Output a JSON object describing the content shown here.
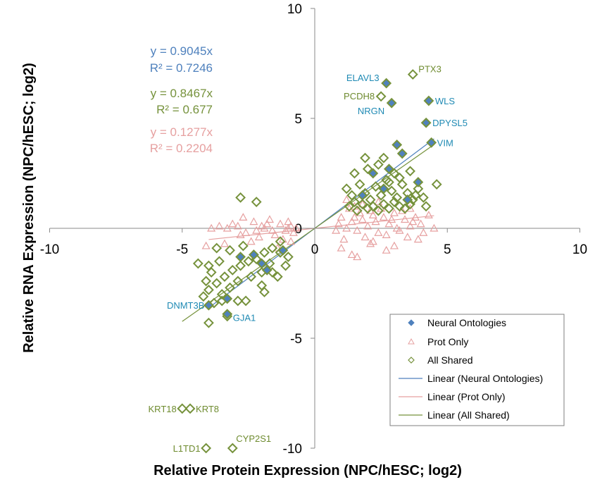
{
  "chart_data": {
    "type": "scatter",
    "xlabel": "Relative Protein Expression (NPC/hESC; log2)",
    "ylabel": "Relative RNA Expression (NPC/hESC; log2)",
    "xlim": [
      -10,
      10
    ],
    "ylim": [
      -10,
      10
    ],
    "x_ticks": [
      -10,
      -5,
      0,
      5,
      10
    ],
    "y_ticks": [
      -10,
      -5,
      5,
      10
    ],
    "origin_tick": "0",
    "colors": {
      "neural": "#4f81bd",
      "prot": "#e6a0a0",
      "shared": "#76923c",
      "neural_label": "#1f8ab4",
      "shared_label": "#6e8b2f",
      "neural_eq": "#4f81bd",
      "shared_eq": "#76923c",
      "prot_eq": "#e6a0a0"
    },
    "equations": [
      {
        "eq": "y = 0.9045x",
        "r2": "R² = 0.7246",
        "series": "neural_ontologies"
      },
      {
        "eq": "y = 0.8467x",
        "r2": "R² = 0.677",
        "series": "all_shared"
      },
      {
        "eq": "y = 0.1277x",
        "r2": "R² = 0.2204",
        "series": "prot_only"
      }
    ],
    "trendlines": [
      {
        "series": "neural_ontologies",
        "slope": 0.9045,
        "x_range": [
          -4.0,
          4.5
        ]
      },
      {
        "series": "prot_only",
        "slope": 0.1277,
        "x_range": [
          -4.0,
          4.5
        ]
      },
      {
        "series": "all_shared",
        "slope": 0.8467,
        "x_range": [
          -5.0,
          4.5
        ]
      }
    ],
    "legend": {
      "placement": "bottom-right",
      "items": [
        {
          "label": "Neural Ontologies",
          "kind": "neural-marker"
        },
        {
          "label": "Prot Only",
          "kind": "prot-marker"
        },
        {
          "label": "All Shared",
          "kind": "shared-marker"
        },
        {
          "label": "Linear (Neural Ontologies)",
          "kind": "neural-line"
        },
        {
          "label": "Linear (Prot Only)",
          "kind": "prot-line"
        },
        {
          "label": "Linear (All Shared)",
          "kind": "shared-line"
        }
      ]
    },
    "labeled_points": [
      {
        "name": "PTX3",
        "x": 3.7,
        "y": 7.0,
        "series": "all_shared"
      },
      {
        "name": "ELAVL3",
        "x": 2.7,
        "y": 6.6,
        "series": "neural_ontologies"
      },
      {
        "name": "PCDH8",
        "x": 2.5,
        "y": 6.0,
        "series": "all_shared"
      },
      {
        "name": "WLS",
        "x": 4.3,
        "y": 5.8,
        "series": "neural_ontologies"
      },
      {
        "name": "NRGN",
        "x": 2.9,
        "y": 5.7,
        "series": "neural_ontologies"
      },
      {
        "name": "DPYSL5",
        "x": 4.2,
        "y": 4.8,
        "series": "neural_ontologies"
      },
      {
        "name": "VIM",
        "x": 4.4,
        "y": 3.9,
        "series": "neural_ontologies"
      },
      {
        "name": "DNMT3B",
        "x": -4.0,
        "y": -3.5,
        "series": "neural_ontologies"
      },
      {
        "name": "GJA1",
        "x": -3.3,
        "y": -3.9,
        "series": "neural_ontologies"
      },
      {
        "name": "KRT18",
        "x": -5.0,
        "y": -8.2,
        "series": "all_shared"
      },
      {
        "name": "KRT8",
        "x": -4.7,
        "y": -8.2,
        "series": "all_shared"
      },
      {
        "name": "L1TD1",
        "x": -4.1,
        "y": -10.0,
        "series": "all_shared"
      },
      {
        "name": "CYP2S1",
        "x": -3.1,
        "y": -10.0,
        "series": "all_shared"
      }
    ],
    "series": [
      {
        "name": "Neural Ontologies",
        "key": "neural",
        "points": [
          [
            2.2,
            2.5
          ],
          [
            2.8,
            2.7
          ],
          [
            3.1,
            3.8
          ],
          [
            3.3,
            3.4
          ],
          [
            3.9,
            2.1
          ],
          [
            3.5,
            1.3
          ],
          [
            2.6,
            1.8
          ],
          [
            1.8,
            1.5
          ],
          [
            -2.0,
            -1.6
          ],
          [
            -1.8,
            -1.9
          ],
          [
            -2.3,
            -1.2
          ],
          [
            -3.3,
            -3.2
          ],
          [
            -1.2,
            -1.0
          ],
          [
            -2.8,
            -1.3
          ]
        ]
      },
      {
        "name": "Prot Only",
        "key": "prot",
        "points": [
          [
            -3.3,
            0.0
          ],
          [
            -2.9,
            0.1
          ],
          [
            -2.6,
            -0.2
          ],
          [
            -2.3,
            0.3
          ],
          [
            -2.1,
            -0.4
          ],
          [
            -1.9,
            0.0
          ],
          [
            -1.7,
            0.4
          ],
          [
            -1.5,
            -0.3
          ],
          [
            -1.3,
            0.2
          ],
          [
            -1.1,
            -0.1
          ],
          [
            -0.9,
            0.1
          ],
          [
            -0.8,
            -0.2
          ],
          [
            -0.7,
            0.0
          ],
          [
            -1.0,
            0.3
          ],
          [
            -1.2,
            -0.5
          ],
          [
            -1.6,
            -0.1
          ],
          [
            -2.0,
            0.1
          ],
          [
            -2.4,
            -0.6
          ],
          [
            -2.8,
            -0.3
          ],
          [
            -3.1,
            0.2
          ],
          [
            -3.6,
            0.1
          ],
          [
            -3.9,
            0.0
          ],
          [
            -4.1,
            -0.8
          ],
          [
            -3.4,
            -0.7
          ],
          [
            -0.9,
            -0.6
          ],
          [
            -1.4,
            -0.9
          ],
          [
            -2.7,
            0.5
          ],
          [
            -2.2,
            -0.1
          ],
          [
            -1.8,
            0.2
          ],
          [
            -1.0,
            0.0
          ],
          [
            1.0,
            0.5
          ],
          [
            1.2,
            0.0
          ],
          [
            1.4,
            0.3
          ],
          [
            1.6,
            -0.1
          ],
          [
            1.8,
            0.4
          ],
          [
            2.0,
            0.1
          ],
          [
            2.2,
            0.6
          ],
          [
            2.4,
            -0.2
          ],
          [
            2.6,
            0.5
          ],
          [
            2.8,
            0.2
          ],
          [
            3.0,
            0.7
          ],
          [
            3.2,
            -0.1
          ],
          [
            3.4,
            0.4
          ],
          [
            3.6,
            0.1
          ],
          [
            3.8,
            0.5
          ],
          [
            4.0,
            0.2
          ],
          [
            1.1,
            -0.5
          ],
          [
            1.3,
            0.9
          ],
          [
            1.5,
            1.0
          ],
          [
            1.7,
            0.7
          ],
          [
            1.9,
            -0.4
          ],
          [
            2.1,
            0.8
          ],
          [
            2.3,
            0.3
          ],
          [
            2.5,
            0.9
          ],
          [
            2.7,
            -0.3
          ],
          [
            2.9,
            0.4
          ],
          [
            3.1,
            0.0
          ],
          [
            3.3,
            0.8
          ],
          [
            3.5,
            -0.4
          ],
          [
            3.7,
            0.3
          ],
          [
            4.1,
            -0.2
          ],
          [
            4.3,
            0.6
          ],
          [
            1.0,
            -0.9
          ],
          [
            1.4,
            -1.2
          ],
          [
            1.6,
            -1.3
          ],
          [
            2.1,
            -0.7
          ],
          [
            2.7,
            -1.0
          ],
          [
            3.0,
            -0.8
          ],
          [
            3.9,
            -0.5
          ],
          [
            4.5,
            0.0
          ],
          [
            1.2,
            1.3
          ],
          [
            1.8,
            1.1
          ],
          [
            2.4,
            1.2
          ],
          [
            0.9,
            0.2
          ],
          [
            0.8,
            -0.1
          ],
          [
            1.5,
            0.5
          ],
          [
            2.2,
            -0.6
          ],
          [
            3.6,
            0.9
          ]
        ]
      },
      {
        "name": "All Shared",
        "key": "shared",
        "points": [
          [
            1.2,
            1.8
          ],
          [
            1.4,
            1.5
          ],
          [
            1.5,
            1.2
          ],
          [
            1.7,
            2.0
          ],
          [
            1.9,
            1.6
          ],
          [
            2.1,
            1.3
          ],
          [
            2.3,
            1.9
          ],
          [
            2.5,
            1.5
          ],
          [
            2.7,
            2.2
          ],
          [
            2.9,
            1.7
          ],
          [
            3.1,
            1.4
          ],
          [
            3.3,
            2.0
          ],
          [
            3.5,
            1.6
          ],
          [
            3.7,
            1.3
          ],
          [
            3.9,
            1.8
          ],
          [
            4.1,
            1.4
          ],
          [
            1.3,
            1.0
          ],
          [
            1.6,
            0.8
          ],
          [
            1.8,
            1.1
          ],
          [
            2.0,
            0.9
          ],
          [
            2.2,
            1.0
          ],
          [
            2.4,
            0.8
          ],
          [
            2.6,
            1.1
          ],
          [
            2.8,
            0.9
          ],
          [
            3.0,
            1.2
          ],
          [
            3.2,
            1.0
          ],
          [
            3.4,
            0.9
          ],
          [
            3.6,
            1.1
          ],
          [
            3.8,
            1.5
          ],
          [
            4.2,
            1.0
          ],
          [
            4.6,
            2.0
          ],
          [
            2.0,
            2.7
          ],
          [
            2.4,
            2.9
          ],
          [
            2.6,
            3.2
          ],
          [
            3.0,
            2.5
          ],
          [
            3.2,
            2.3
          ],
          [
            3.6,
            2.6
          ],
          [
            1.9,
            3.2
          ],
          [
            1.5,
            2.5
          ],
          [
            2.8,
            2.1
          ],
          [
            -1.6,
            -0.9
          ],
          [
            -1.9,
            -1.1
          ],
          [
            -2.2,
            -1.4
          ],
          [
            -2.5,
            -1.5
          ],
          [
            -2.8,
            -1.7
          ],
          [
            -3.1,
            -1.9
          ],
          [
            -3.4,
            -2.2
          ],
          [
            -3.7,
            -2.5
          ],
          [
            -4.0,
            -2.8
          ],
          [
            -4.2,
            -3.1
          ],
          [
            -1.3,
            -1.1
          ],
          [
            -1.7,
            -1.6
          ],
          [
            -2.0,
            -2.0
          ],
          [
            -2.4,
            -2.2
          ],
          [
            -2.9,
            -2.4
          ],
          [
            -3.2,
            -2.7
          ],
          [
            -3.5,
            -3.0
          ],
          [
            -3.8,
            -3.4
          ],
          [
            -4.0,
            -4.3
          ],
          [
            -3.5,
            -3.3
          ],
          [
            -2.9,
            -3.3
          ],
          [
            -2.0,
            -2.6
          ],
          [
            -1.6,
            -2.0
          ],
          [
            -1.1,
            -1.7
          ],
          [
            -1.3,
            -0.6
          ],
          [
            -1.0,
            -1.3
          ],
          [
            -4.0,
            -1.7
          ],
          [
            -3.6,
            -1.5
          ],
          [
            -3.2,
            -1.0
          ],
          [
            -2.7,
            -0.8
          ],
          [
            -4.4,
            -1.6
          ],
          [
            -4.1,
            -2.4
          ],
          [
            -2.8,
            1.4
          ],
          [
            -2.2,
            1.2
          ],
          [
            -3.7,
            -0.9
          ],
          [
            -3.9,
            -2.0
          ],
          [
            -1.4,
            -2.2
          ],
          [
            -2.6,
            -3.3
          ],
          [
            -3.3,
            -4.0
          ],
          [
            -1.9,
            -2.9
          ]
        ]
      }
    ]
  }
}
